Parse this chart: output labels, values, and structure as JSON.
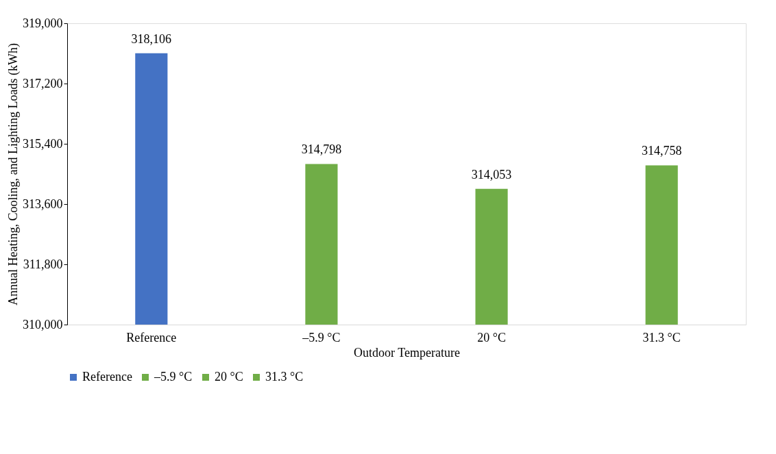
{
  "chart_data": {
    "type": "bar",
    "xlabel": "Outdoor Temperature",
    "ylabel": "Annual Heating, Cooling, and Lighting Loads (kWh)",
    "categories": [
      "Reference",
      "–5.9 °C",
      "20 °C",
      "31.3 °C"
    ],
    "series": [
      {
        "name": "Reference",
        "color": "#4472c4",
        "values": [
          318106,
          null,
          null,
          null
        ]
      },
      {
        "name": "–5.9 °C",
        "color": "#70ad47",
        "values": [
          null,
          314798,
          null,
          null
        ]
      },
      {
        "name": "20 °C",
        "color": "#70ad47",
        "values": [
          null,
          null,
          314053,
          null
        ]
      },
      {
        "name": "31.3 °C",
        "color": "#70ad47",
        "values": [
          null,
          null,
          null,
          314758
        ]
      }
    ],
    "ylim": [
      310000,
      319000
    ],
    "yticks": [
      {
        "value": 310000,
        "label": "310,000"
      },
      {
        "value": 311800,
        "label": "311,800"
      },
      {
        "value": 313600,
        "label": "313,600"
      },
      {
        "value": 315400,
        "label": "315,400"
      },
      {
        "value": 317200,
        "label": "317,200"
      },
      {
        "value": 319000,
        "label": "319,000"
      }
    ],
    "value_labels": [
      "318,106",
      "314,798",
      "314,053",
      "314,758"
    ],
    "grid": false,
    "legend": "bottom"
  }
}
